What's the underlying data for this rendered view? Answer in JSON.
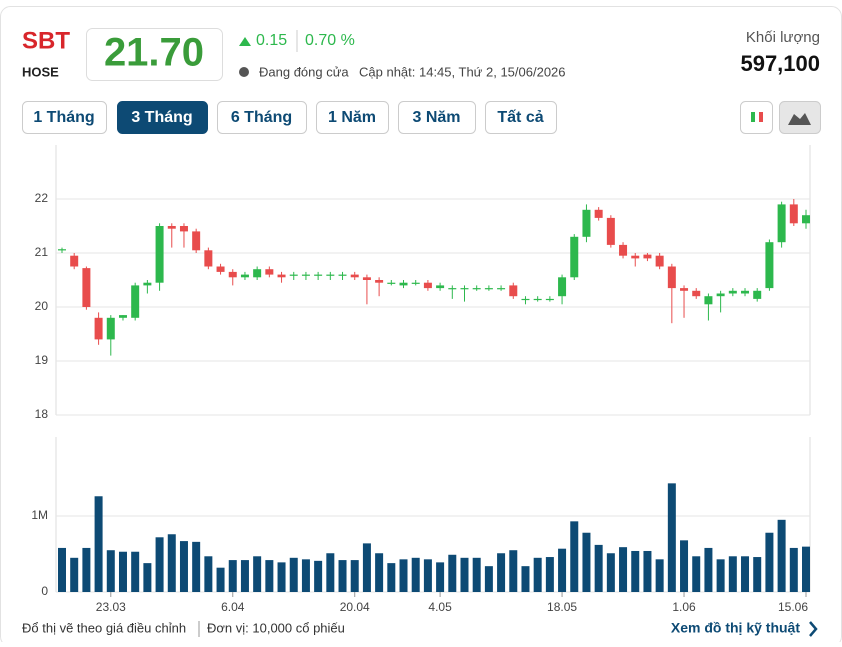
{
  "header": {
    "symbol": "SBT",
    "exchange": "HOSE",
    "price": "21.70",
    "change": "0.15",
    "change_pct": "0.70 %",
    "status": "Đang đóng cửa",
    "updated": "Cập nhật: 14:45, Thứ 2, 15/06/2026",
    "volume_label": "Khối lượng",
    "volume": "597,100"
  },
  "range_buttons": {
    "items": [
      "1 Tháng",
      "3 Tháng",
      "6 Tháng",
      "1 Năm",
      "3 Năm",
      "Tất cả"
    ],
    "active": 1
  },
  "chart_data": [
    {
      "type": "candlestick",
      "up_color": "#2db84d",
      "down_color": "#e84c4c",
      "ylim": [
        18,
        23
      ],
      "yticks": [
        18,
        19,
        20,
        21,
        22
      ],
      "grid": true,
      "categories": [
        null,
        null,
        null,
        null,
        "23.03",
        null,
        null,
        null,
        null,
        null,
        null,
        null,
        null,
        null,
        "6.04",
        null,
        null,
        null,
        null,
        null,
        null,
        null,
        null,
        null,
        "20.04",
        null,
        null,
        null,
        null,
        null,
        null,
        "4.05",
        null,
        null,
        null,
        null,
        null,
        null,
        null,
        null,
        null,
        "18.05",
        null,
        null,
        null,
        null,
        null,
        null,
        null,
        null,
        null,
        "1.06",
        null,
        null,
        null,
        null,
        null,
        null,
        null,
        null,
        null,
        "15.06"
      ],
      "open": [
        21.05,
        20.95,
        20.72,
        19.8,
        19.4,
        19.8,
        19.8,
        20.4,
        20.45,
        21.5,
        21.5,
        21.4,
        21.05,
        20.75,
        20.65,
        20.55,
        20.55,
        20.7,
        20.6,
        20.6,
        20.6,
        20.6,
        20.6,
        20.6,
        20.6,
        20.55,
        20.5,
        20.45,
        20.4,
        20.45,
        20.45,
        20.35,
        20.35,
        20.35,
        20.35,
        20.35,
        20.35,
        20.4,
        20.15,
        20.15,
        20.15,
        20.2,
        20.55,
        21.3,
        21.8,
        21.65,
        21.15,
        20.95,
        20.97,
        20.95,
        20.75,
        20.35,
        20.3,
        20.05,
        20.2,
        20.25,
        20.25,
        20.15,
        20.35,
        21.2,
        21.9,
        21.55
      ],
      "high": [
        21.1,
        21.0,
        20.75,
        19.9,
        19.85,
        19.85,
        20.45,
        20.5,
        21.55,
        21.55,
        21.55,
        21.45,
        21.1,
        20.8,
        20.7,
        20.65,
        20.75,
        20.75,
        20.65,
        20.65,
        20.65,
        20.65,
        20.65,
        20.65,
        20.65,
        20.6,
        20.55,
        20.5,
        20.5,
        20.5,
        20.5,
        20.45,
        20.4,
        20.4,
        20.4,
        20.4,
        20.4,
        20.45,
        20.2,
        20.2,
        20.2,
        20.6,
        21.35,
        21.9,
        21.85,
        21.7,
        21.2,
        21.0,
        21.0,
        21.0,
        20.8,
        20.4,
        20.35,
        20.25,
        20.3,
        20.35,
        20.35,
        20.35,
        21.25,
        21.95,
        22.0,
        21.8
      ],
      "low": [
        21.0,
        20.7,
        19.95,
        19.3,
        19.1,
        19.75,
        19.75,
        20.25,
        20.3,
        21.1,
        21.1,
        21.0,
        20.7,
        20.6,
        20.4,
        20.5,
        20.5,
        20.55,
        20.45,
        20.5,
        20.5,
        20.5,
        20.5,
        20.5,
        20.5,
        20.05,
        20.2,
        20.4,
        20.35,
        20.4,
        20.3,
        20.3,
        20.15,
        20.1,
        20.3,
        20.3,
        20.3,
        20.15,
        20.05,
        20.1,
        20.1,
        20.05,
        20.5,
        21.2,
        21.6,
        21.1,
        20.9,
        20.75,
        20.85,
        20.7,
        19.7,
        19.8,
        20.15,
        19.75,
        19.9,
        20.2,
        20.2,
        20.1,
        20.3,
        21.1,
        21.5,
        21.45
      ],
      "close": [
        21.07,
        20.75,
        20.0,
        19.4,
        19.8,
        19.85,
        20.4,
        20.45,
        21.5,
        21.45,
        21.4,
        21.05,
        20.75,
        20.65,
        20.55,
        20.6,
        20.7,
        20.6,
        20.55,
        20.6,
        20.6,
        20.6,
        20.6,
        20.6,
        20.55,
        20.5,
        20.45,
        20.45,
        20.45,
        20.45,
        20.35,
        20.4,
        20.35,
        20.35,
        20.35,
        20.35,
        20.35,
        20.2,
        20.15,
        20.15,
        20.15,
        20.55,
        21.3,
        21.8,
        21.65,
        21.15,
        20.95,
        20.9,
        20.9,
        20.75,
        20.35,
        20.3,
        20.2,
        20.2,
        20.25,
        20.3,
        20.3,
        20.3,
        21.2,
        21.9,
        21.55,
        21.7
      ]
    },
    {
      "type": "bar",
      "color": "#0d4a74",
      "ylim": [
        0,
        2040000
      ],
      "yticks": [
        0,
        {
          "value": 1000000,
          "label": "1M"
        }
      ],
      "grid": true,
      "values": [
        580000,
        450000,
        580000,
        1260000,
        550000,
        530000,
        530000,
        380000,
        720000,
        760000,
        670000,
        660000,
        470000,
        320000,
        420000,
        420000,
        470000,
        420000,
        390000,
        450000,
        430000,
        410000,
        510000,
        420000,
        420000,
        640000,
        510000,
        380000,
        430000,
        450000,
        430000,
        390000,
        490000,
        450000,
        450000,
        340000,
        510000,
        550000,
        340000,
        450000,
        460000,
        570000,
        930000,
        780000,
        620000,
        510000,
        590000,
        540000,
        540000,
        430000,
        1430000,
        680000,
        470000,
        580000,
        430000,
        470000,
        470000,
        460000,
        780000,
        950000,
        580000,
        597100
      ]
    }
  ],
  "footer": {
    "note": "Đổ thị vẽ theo giá điều chỉnh",
    "unit": "Đơn vị: 10,000 cổ phiếu",
    "link": "Xem đồ thị kỹ thuật"
  }
}
